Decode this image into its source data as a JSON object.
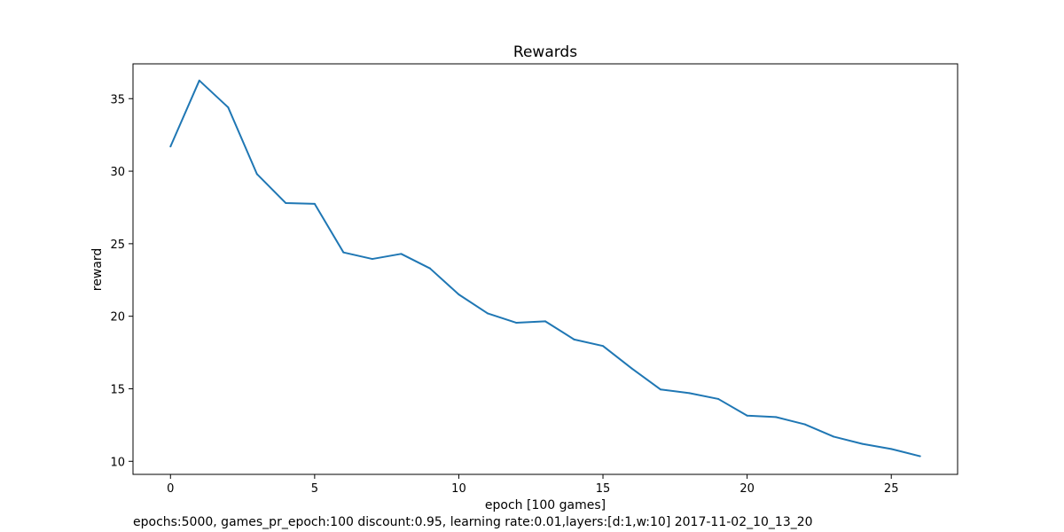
{
  "chart_data": {
    "type": "line",
    "title": "Rewards",
    "xlabel": "epoch [100 games]",
    "ylabel": "reward",
    "xlim": [
      -1.3,
      27.3
    ],
    "ylim": [
      9.1,
      37.4
    ],
    "x_ticks": [
      0,
      5,
      10,
      15,
      20,
      25
    ],
    "y_ticks": [
      10,
      15,
      20,
      25,
      30,
      35
    ],
    "grid": false,
    "series": [
      {
        "color": "#1f77b4",
        "x": [
          0,
          1,
          2,
          3,
          4,
          5,
          6,
          7,
          8,
          9,
          10,
          11,
          12,
          13,
          14,
          15,
          16,
          17,
          18,
          19,
          20,
          21,
          22,
          23,
          24,
          25,
          26
        ],
        "values": [
          31.7,
          36.25,
          34.4,
          29.8,
          27.8,
          27.75,
          24.4,
          23.95,
          24.3,
          23.3,
          21.5,
          20.2,
          19.55,
          19.65,
          18.4,
          17.95,
          16.4,
          14.95,
          14.7,
          14.3,
          13.15,
          13.05,
          12.55,
          11.7,
          11.2,
          10.85,
          10.35
        ]
      }
    ]
  },
  "footer": {
    "note": "epochs:5000, games_pr_epoch:100 discount:0.95, learning rate:0.01,layers:[d:1,w:10] 2017-11-02_10_13_20"
  }
}
